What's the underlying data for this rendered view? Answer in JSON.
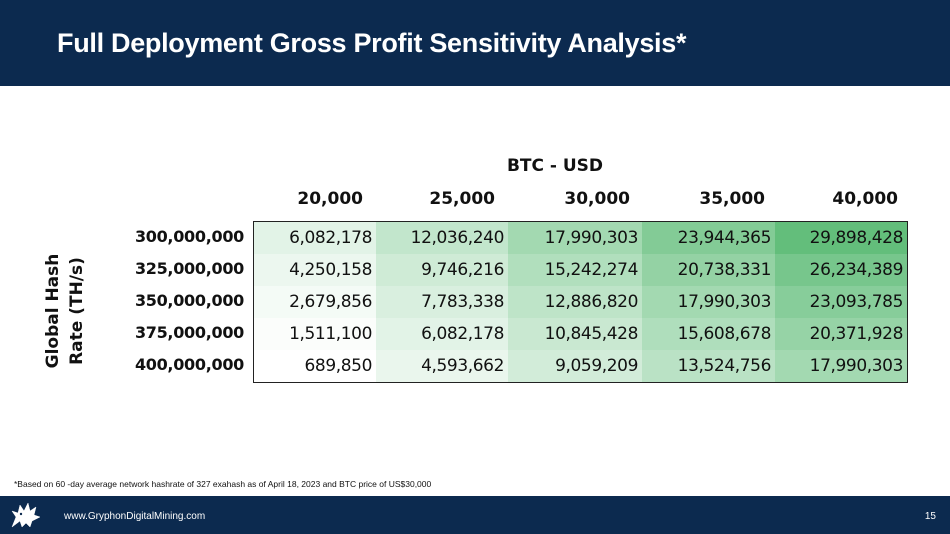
{
  "header": {
    "title": "Full Deployment Gross Profit Sensitivity Analysis*"
  },
  "table": {
    "column_axis_label": "BTC - USD",
    "row_axis_label_line1": "Global Hash",
    "row_axis_label_line2": "Rate (TH/s)",
    "columns": [
      "20,000",
      "25,000",
      "30,000",
      "35,000",
      "40,000"
    ],
    "rows": [
      {
        "label": "300,000,000",
        "values": [
          "6,082,178",
          "12,036,240",
          "17,990,303",
          "23,944,365",
          "29,898,428"
        ]
      },
      {
        "label": "325,000,000",
        "values": [
          "4,250,158",
          "9,746,216",
          "15,242,274",
          "20,738,331",
          "26,234,389"
        ]
      },
      {
        "label": "350,000,000",
        "values": [
          "2,679,856",
          "7,783,338",
          "12,886,820",
          "17,990,303",
          "23,093,785"
        ]
      },
      {
        "label": "375,000,000",
        "values": [
          "1,511,100",
          "6,082,178",
          "10,845,428",
          "15,608,678",
          "20,371,928"
        ]
      },
      {
        "label": "400,000,000",
        "values": [
          "689,850",
          "4,593,662",
          "9,059,209",
          "13,524,756",
          "17,990,303"
        ]
      }
    ],
    "raw_values": [
      [
        6082178,
        12036240,
        17990303,
        23944365,
        29898428
      ],
      [
        4250158,
        9746216,
        15242274,
        20738331,
        26234389
      ],
      [
        2679856,
        7783338,
        12886820,
        17990303,
        23093785
      ],
      [
        1511100,
        6082178,
        10845428,
        15608678,
        20371928
      ],
      [
        689850,
        4593662,
        9059209,
        13524756,
        17990303
      ]
    ],
    "heat_low_color": "#ffffff",
    "heat_high_color": "#63be7b"
  },
  "footnote": "*Based on 60  -day average network hashrate of 327 exahash as of April 18, 2023 and BTC price of US$30,000",
  "footer": {
    "url": "www.GryphonDigitalMining.com",
    "page_number": "15",
    "logo_icon": "gryphon-logo-icon"
  },
  "colors": {
    "header_bg": "#0c2a4f",
    "footer_bg": "#0c2a4f"
  }
}
